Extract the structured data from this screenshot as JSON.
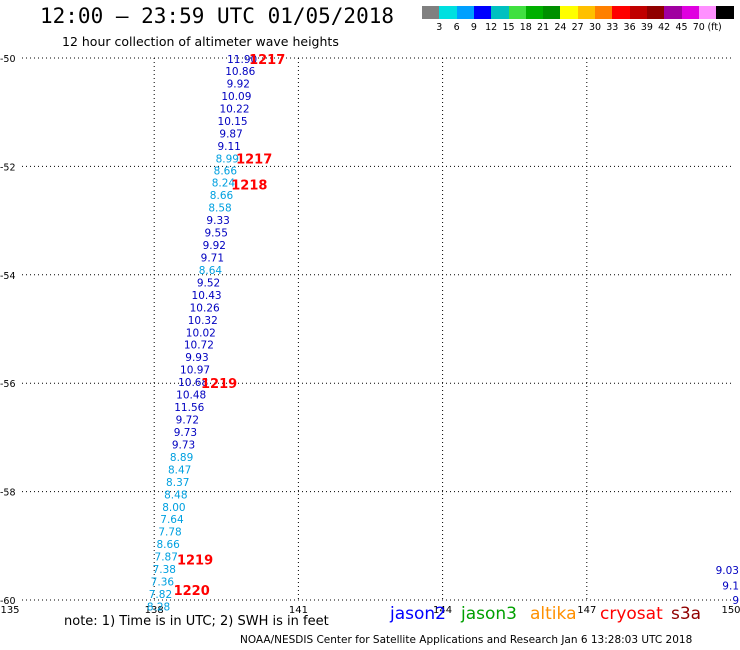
{
  "header": {
    "title": "12:00 – 23:59 UTC 01/05/2018",
    "subtitle": "12 hour collection of altimeter wave heights"
  },
  "legend": {
    "colors": [
      "#808080",
      "#00e0e0",
      "#00a0ff",
      "#0000ff",
      "#00c0c0",
      "#40e040",
      "#00b000",
      "#009000",
      "#ffff00",
      "#ffc000",
      "#ff8000",
      "#ff0000",
      "#c00000",
      "#900000",
      "#a000a0",
      "#e000e0",
      "#ff90ff",
      "#000000"
    ],
    "labels": [
      "3",
      "6",
      "9",
      "12",
      "15",
      "18",
      "21",
      "24",
      "27",
      "30",
      "33",
      "36",
      "39",
      "42",
      "45",
      "70"
    ],
    "unit": "(ft)"
  },
  "axes": {
    "x_ticks": [
      "135",
      "138",
      "141",
      "144",
      "147",
      "150"
    ],
    "y_ticks": [
      "-50",
      "-52",
      "-54",
      "-56",
      "-58",
      "-60"
    ]
  },
  "chart_data": {
    "type": "scatter",
    "xlim": [
      135,
      150
    ],
    "ylim": [
      -60,
      -50
    ],
    "grid": true,
    "series": [
      {
        "name": "jason2",
        "points": [
          {
            "x": 139.83,
            "y": -50.02,
            "v": "11.90",
            "c": "#0000c0"
          },
          {
            "x": 139.79,
            "y": -50.24,
            "v": "10.86",
            "c": "#0000c0"
          },
          {
            "x": 139.75,
            "y": -50.47,
            "v": "9.92",
            "c": "#0000c0"
          },
          {
            "x": 139.71,
            "y": -50.7,
            "v": "10.09",
            "c": "#0000c0"
          },
          {
            "x": 139.67,
            "y": -50.93,
            "v": "10.22",
            "c": "#0000c0"
          },
          {
            "x": 139.63,
            "y": -51.16,
            "v": "10.15",
            "c": "#0000c0"
          },
          {
            "x": 139.6,
            "y": -51.39,
            "v": "9.87",
            "c": "#0000c0"
          },
          {
            "x": 139.56,
            "y": -51.62,
            "v": "9.11",
            "c": "#0000c0"
          },
          {
            "x": 139.52,
            "y": -51.85,
            "v": "8.99",
            "c": "#00a0e0"
          },
          {
            "x": 139.48,
            "y": -52.08,
            "v": "8.66",
            "c": "#00a0e0"
          },
          {
            "x": 139.44,
            "y": -52.3,
            "v": "8.24",
            "c": "#00a0e0"
          },
          {
            "x": 139.4,
            "y": -52.53,
            "v": "8.66",
            "c": "#00a0e0"
          },
          {
            "x": 139.37,
            "y": -52.76,
            "v": "8.58",
            "c": "#00a0e0"
          },
          {
            "x": 139.33,
            "y": -52.99,
            "v": "9.33",
            "c": "#0000c0"
          },
          {
            "x": 139.29,
            "y": -53.22,
            "v": "9.55",
            "c": "#0000c0"
          },
          {
            "x": 139.25,
            "y": -53.45,
            "v": "9.92",
            "c": "#0000c0"
          },
          {
            "x": 139.21,
            "y": -53.68,
            "v": "9.71",
            "c": "#0000c0"
          },
          {
            "x": 139.17,
            "y": -53.91,
            "v": "8.64",
            "c": "#00a0e0"
          },
          {
            "x": 139.13,
            "y": -54.14,
            "v": "9.52",
            "c": "#0000c0"
          },
          {
            "x": 139.09,
            "y": -54.37,
            "v": "10.43",
            "c": "#0000c0"
          },
          {
            "x": 139.05,
            "y": -54.6,
            "v": "10.26",
            "c": "#0000c0"
          },
          {
            "x": 139.01,
            "y": -54.83,
            "v": "10.32",
            "c": "#0000c0"
          },
          {
            "x": 138.97,
            "y": -55.06,
            "v": "10.02",
            "c": "#0000c0"
          },
          {
            "x": 138.93,
            "y": -55.29,
            "v": "10.72",
            "c": "#0000c0"
          },
          {
            "x": 138.89,
            "y": -55.52,
            "v": "9.93",
            "c": "#0000c0"
          },
          {
            "x": 138.85,
            "y": -55.75,
            "v": "10.97",
            "c": "#0000c0"
          },
          {
            "x": 138.81,
            "y": -55.98,
            "v": "10.68",
            "c": "#0000c0"
          },
          {
            "x": 138.77,
            "y": -56.21,
            "v": "10.48",
            "c": "#0000c0"
          },
          {
            "x": 138.73,
            "y": -56.44,
            "v": "11.56",
            "c": "#0000c0"
          },
          {
            "x": 138.69,
            "y": -56.67,
            "v": "9.72",
            "c": "#0000c0"
          },
          {
            "x": 138.65,
            "y": -56.9,
            "v": "9.73",
            "c": "#0000c0"
          },
          {
            "x": 138.61,
            "y": -57.13,
            "v": "9.73",
            "c": "#0000c0"
          },
          {
            "x": 138.57,
            "y": -57.36,
            "v": "8.89",
            "c": "#00a0e0"
          },
          {
            "x": 138.53,
            "y": -57.59,
            "v": "8.47",
            "c": "#00a0e0"
          },
          {
            "x": 138.49,
            "y": -57.82,
            "v": "8.37",
            "c": "#00a0e0"
          },
          {
            "x": 138.45,
            "y": -58.05,
            "v": "8.48",
            "c": "#00a0e0"
          },
          {
            "x": 138.41,
            "y": -58.28,
            "v": "8.00",
            "c": "#00a0e0"
          },
          {
            "x": 138.37,
            "y": -58.51,
            "v": "7.64",
            "c": "#00a0e0"
          },
          {
            "x": 138.33,
            "y": -58.74,
            "v": "7.78",
            "c": "#00a0e0"
          },
          {
            "x": 138.29,
            "y": -58.97,
            "v": "8.66",
            "c": "#00a0e0"
          },
          {
            "x": 138.25,
            "y": -59.2,
            "v": "7.87",
            "c": "#00a0e0"
          },
          {
            "x": 138.21,
            "y": -59.43,
            "v": "7.38",
            "c": "#00a0e0"
          },
          {
            "x": 138.17,
            "y": -59.66,
            "v": "7.36",
            "c": "#00a0e0"
          },
          {
            "x": 138.13,
            "y": -59.89,
            "v": "7.82",
            "c": "#00a0e0"
          },
          {
            "x": 138.09,
            "y": -60.12,
            "v": "8.28",
            "c": "#00a0e0"
          },
          {
            "x": 149.95,
            "y": -59.45,
            "v": "9.03",
            "c": "#0000c0"
          },
          {
            "x": 149.95,
            "y": -59.73,
            "v": "9.1",
            "c": "#0000c0"
          },
          {
            "x": 149.95,
            "y": -60.0,
            "v": "9",
            "c": "#0000c0"
          }
        ]
      }
    ],
    "time_labels": [
      {
        "x": 140.35,
        "y": -50.02,
        "t": "1217"
      },
      {
        "x": 140.08,
        "y": -51.85,
        "t": "1217"
      },
      {
        "x": 139.98,
        "y": -52.33,
        "t": "1218"
      },
      {
        "x": 139.35,
        "y": -56.0,
        "t": "1219"
      },
      {
        "x": 138.85,
        "y": -59.25,
        "t": "1219"
      },
      {
        "x": 138.78,
        "y": -59.82,
        "t": "1220"
      }
    ]
  },
  "note": "note: 1) Time is in UTC; 2) SWH is in feet",
  "satellites": [
    {
      "name": "jason2",
      "color": "#0000ff"
    },
    {
      "name": "jason3",
      "color": "#00a000"
    },
    {
      "name": "altika",
      "color": "#ff9000"
    },
    {
      "name": "cryosat",
      "color": "#ff0000"
    },
    {
      "name": "s3a",
      "color": "#900000"
    }
  ],
  "footer": "NOAA/NESDIS Center for Satellite Applications and Research   Jan  6 13:28:03 UTC 2018"
}
